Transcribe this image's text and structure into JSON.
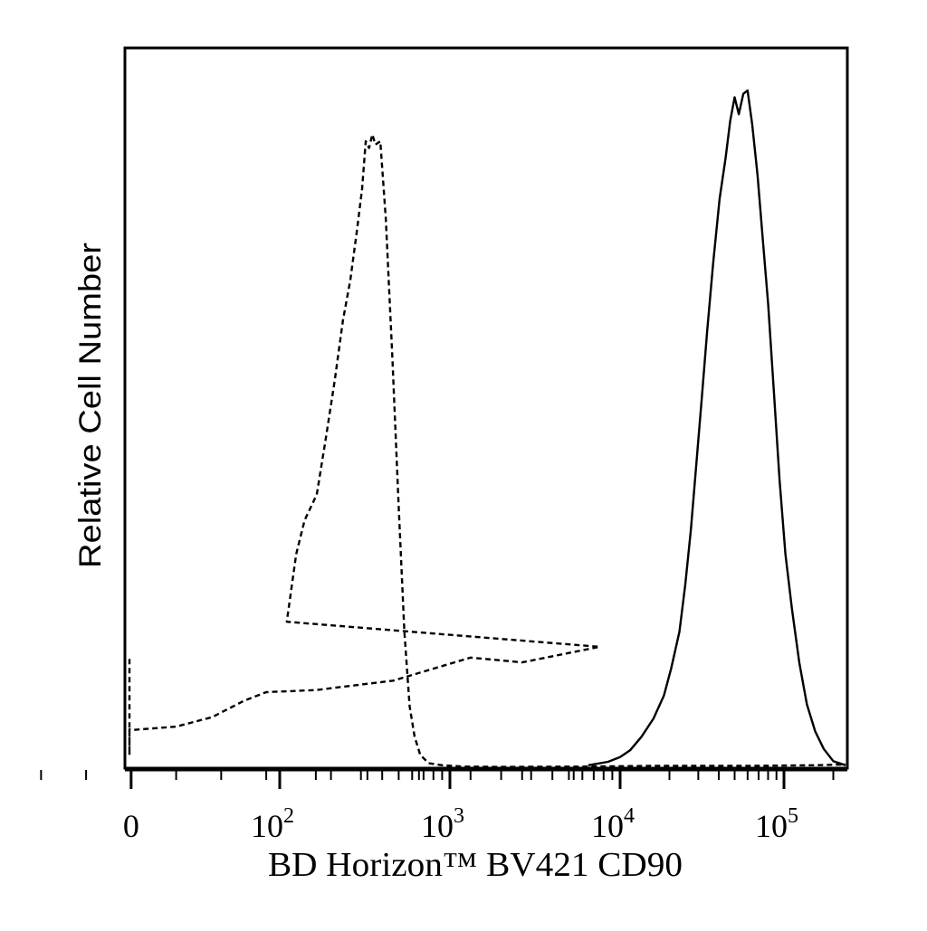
{
  "chart_data": {
    "type": "line",
    "title": "",
    "xlabel": "BD Horizon™ BV421 CD90",
    "ylabel": "Relative Cell Number",
    "x_scale": "biexponential",
    "xlim": [
      -80,
      240000
    ],
    "ylim": [
      0,
      100
    ],
    "x_ticks": [
      {
        "value": 0,
        "label": "0"
      },
      {
        "value": 100,
        "label": "10",
        "exp": "2"
      },
      {
        "value": 1000,
        "label": "10",
        "exp": "3"
      },
      {
        "value": 10000,
        "label": "10",
        "exp": "4"
      },
      {
        "value": 100000,
        "label": "10",
        "exp": "5"
      }
    ],
    "grid": false,
    "legend": "none",
    "series": [
      {
        "style": "dashed",
        "color": "#000000",
        "points": [
          [
            -80,
            16
          ],
          [
            -75,
            2.6
          ],
          [
            -65,
            1.8
          ],
          [
            -45,
            2.7
          ],
          [
            -30,
            4.4
          ],
          [
            -15,
            5.6
          ],
          [
            0,
            5.5
          ],
          [
            10,
            6
          ],
          [
            18,
            7.4
          ],
          [
            25,
            9.8
          ],
          [
            30,
            11.1
          ],
          [
            40,
            11.4
          ],
          [
            55,
            12.8
          ],
          [
            70,
            16.2
          ],
          [
            80,
            15.5
          ],
          [
            95,
            17.8
          ],
          [
            110,
            21.5
          ],
          [
            125,
            31.5
          ],
          [
            140,
            36.5
          ],
          [
            165,
            40.3
          ],
          [
            185,
            48
          ],
          [
            210,
            57
          ],
          [
            235,
            66
          ],
          [
            260,
            72
          ],
          [
            285,
            79.5
          ],
          [
            305,
            85.5
          ],
          [
            320,
            92.5
          ],
          [
            335,
            91.5
          ],
          [
            350,
            93.5
          ],
          [
            365,
            92
          ],
          [
            390,
            92.5
          ],
          [
            420,
            81
          ],
          [
            460,
            60
          ],
          [
            500,
            38.5
          ],
          [
            540,
            20
          ],
          [
            580,
            9
          ],
          [
            620,
            4.5
          ],
          [
            670,
            1.8
          ],
          [
            750,
            0.6
          ],
          [
            900,
            0.3
          ],
          [
            1200,
            0.1
          ],
          [
            2000,
            0.05
          ],
          [
            6000,
            0.1
          ],
          [
            15000,
            0.2
          ],
          [
            60000,
            0.2
          ],
          [
            150000,
            0.3
          ],
          [
            240000,
            0.4
          ]
        ]
      },
      {
        "style": "solid",
        "color": "#000000",
        "points": [
          [
            6500,
            0.3
          ],
          [
            8500,
            0.8
          ],
          [
            10000,
            1.5
          ],
          [
            11500,
            2.5
          ],
          [
            13500,
            4.5
          ],
          [
            16000,
            7.2
          ],
          [
            18500,
            10.6
          ],
          [
            20500,
            14.6
          ],
          [
            23000,
            20
          ],
          [
            25000,
            27
          ],
          [
            27000,
            35
          ],
          [
            29000,
            44
          ],
          [
            31500,
            54.5
          ],
          [
            34000,
            64.5
          ],
          [
            37000,
            74.5
          ],
          [
            40500,
            84
          ],
          [
            44000,
            90
          ],
          [
            47000,
            95.5
          ],
          [
            50000,
            99
          ],
          [
            53000,
            96.5
          ],
          [
            56500,
            99.5
          ],
          [
            60000,
            100
          ],
          [
            64000,
            95
          ],
          [
            69000,
            87.5
          ],
          [
            74000,
            78.5
          ],
          [
            80000,
            68.5
          ],
          [
            87000,
            55
          ],
          [
            94000,
            42.5
          ],
          [
            102000,
            31.5
          ],
          [
            112000,
            23.3
          ],
          [
            124000,
            15.5
          ],
          [
            138000,
            9.3
          ],
          [
            155000,
            5.3
          ],
          [
            175000,
            2.7
          ],
          [
            200000,
            0.9
          ],
          [
            240000,
            0.3
          ]
        ]
      }
    ]
  }
}
